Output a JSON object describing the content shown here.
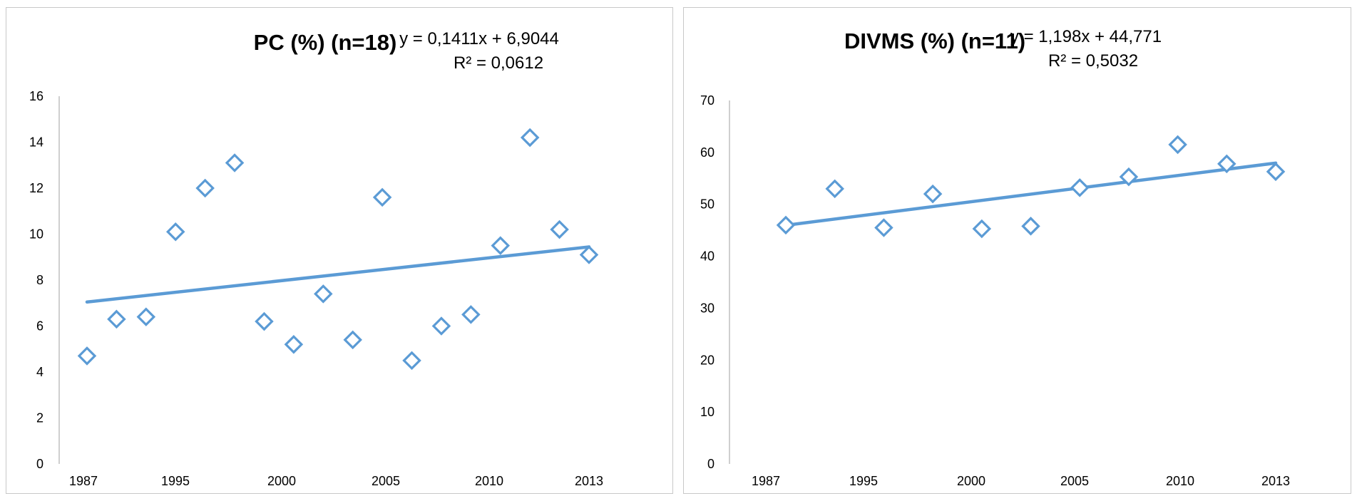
{
  "chart_data": [
    {
      "type": "scatter",
      "title": "PC (%) (n=18)",
      "equation": "y = 0,1411x + 6,9044",
      "r_squared": "R² = 0,0612",
      "xlabel": "",
      "ylabel": "",
      "x_ticks": [
        "1987",
        "1995",
        "2000",
        "2005",
        "2010",
        "2013"
      ],
      "y_ticks": [
        "0",
        "2",
        "4",
        "6",
        "8",
        "10",
        "12",
        "14",
        "16"
      ],
      "ylim": [
        0,
        16
      ],
      "series": [
        {
          "x": [
            1,
            2,
            3,
            4,
            5,
            6,
            7,
            8,
            9,
            10,
            11,
            12,
            13,
            14,
            15,
            16,
            17,
            18
          ],
          "values": [
            4.7,
            6.3,
            6.4,
            10.1,
            12.0,
            13.1,
            6.2,
            5.2,
            7.4,
            5.4,
            11.6,
            4.5,
            6.0,
            6.5,
            9.5,
            14.2,
            10.2,
            9.1
          ]
        }
      ],
      "trendline": {
        "slope": 0.1411,
        "intercept": 6.9044
      },
      "marker_color": "#5b9bd5",
      "grid": false
    },
    {
      "type": "scatter",
      "title": "DIVMS (%) (n=11)",
      "equation": "y = 1,198x + 44,771",
      "r_squared": "R² = 0,5032",
      "xlabel": "",
      "ylabel": "",
      "x_ticks": [
        "1987",
        "1995",
        "2000",
        "2005",
        "2010",
        "2013"
      ],
      "y_ticks": [
        "0",
        "10",
        "20",
        "30",
        "40",
        "50",
        "60",
        "70"
      ],
      "ylim": [
        0,
        70
      ],
      "series": [
        {
          "x": [
            1,
            2,
            3,
            4,
            5,
            6,
            7,
            8,
            9,
            10,
            11
          ],
          "values": [
            46.0,
            53.0,
            45.5,
            52.0,
            45.3,
            45.8,
            53.2,
            55.3,
            61.5,
            57.8,
            56.3
          ]
        }
      ],
      "trendline": {
        "slope": 1.198,
        "intercept": 44.771
      },
      "marker_color": "#5b9bd5",
      "grid": false
    }
  ]
}
